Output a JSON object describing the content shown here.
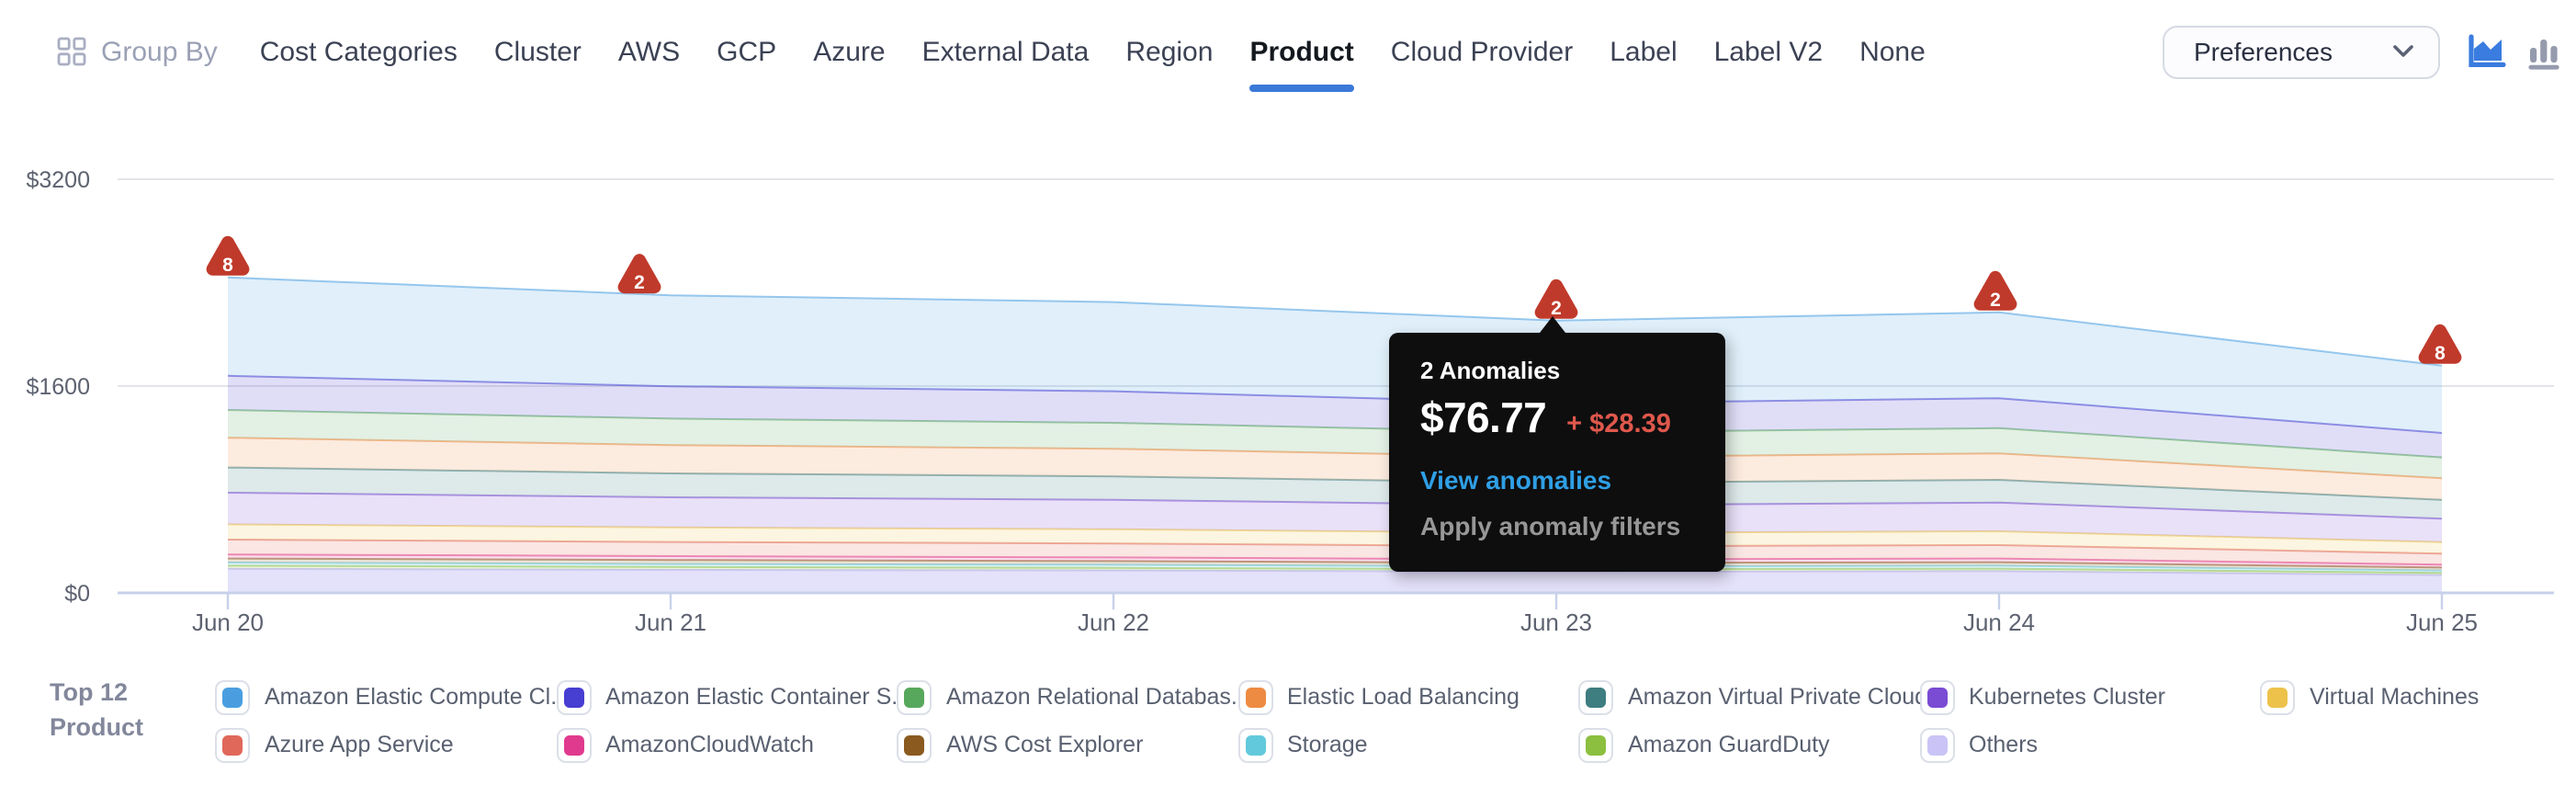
{
  "nav": {
    "group_by_label": "Group By",
    "items": [
      "Cost Categories",
      "Cluster",
      "AWS",
      "GCP",
      "Azure",
      "External Data",
      "Region",
      "Product",
      "Cloud Provider",
      "Label",
      "Label V2",
      "None"
    ],
    "selected": "Product",
    "underline_color": "#3B78D8",
    "preferences_label": "Preferences",
    "chart_toggles": [
      {
        "icon": "area-chart-icon",
        "active": true,
        "color": "#3A7CDF"
      },
      {
        "icon": "bar-chart-icon",
        "active": false,
        "color": "#959BAD"
      }
    ]
  },
  "chart_data": {
    "type": "area",
    "stacked": true,
    "stacking": "first-series-on-top",
    "x": [
      "Jun 20",
      "Jun 21",
      "Jun 22",
      "Jun 23",
      "Jun 24",
      "Jun 25"
    ],
    "ylim": [
      0,
      3200
    ],
    "y_ticks": [
      {
        "value": 0,
        "label": "$0"
      },
      {
        "value": 1600,
        "label": "$1600"
      },
      {
        "value": 3200,
        "label": "$3200"
      }
    ],
    "grid": true,
    "legend_position": "bottom",
    "series": [
      {
        "name": "Amazon Elastic Compute Cl...",
        "color": "#4A9EE0",
        "values": [
          760,
          705,
          690,
          640,
          665,
          520
        ]
      },
      {
        "name": "Amazon Elastic Container S...",
        "color": "#473ED2",
        "values": [
          265,
          250,
          245,
          225,
          232,
          190
        ]
      },
      {
        "name": "Amazon Relational Databas...",
        "color": "#57A85C",
        "values": [
          215,
          205,
          200,
          190,
          195,
          160
        ]
      },
      {
        "name": "Elastic Load Balancing",
        "color": "#EE8B42",
        "values": [
          230,
          218,
          213,
          200,
          205,
          168
        ]
      },
      {
        "name": "Amazon Virtual Private Cloud",
        "color": "#3E7D80",
        "values": [
          195,
          186,
          182,
          172,
          176,
          145
        ]
      },
      {
        "name": "Kubernetes Cluster",
        "color": "#7A4BD3",
        "values": [
          245,
          233,
          228,
          215,
          221,
          182
        ]
      },
      {
        "name": "Virtual Machines",
        "color": "#EDC24B",
        "values": [
          118,
          112,
          110,
          104,
          107,
          88
        ]
      },
      {
        "name": "Azure App Service",
        "color": "#E0685A",
        "values": [
          115,
          110,
          107,
          101,
          104,
          86
        ]
      },
      {
        "name": "AmazonCloudWatch",
        "color": "#E03A8E",
        "values": [
          31,
          30,
          29,
          27,
          28,
          23
        ]
      },
      {
        "name": "AWS Cost Explorer",
        "color": "#8A5A1E",
        "values": [
          31,
          30,
          29,
          27,
          28,
          23
        ]
      },
      {
        "name": "Storage",
        "color": "#62C9DC",
        "values": [
          25,
          24,
          23,
          22,
          22,
          18
        ]
      },
      {
        "name": "Amazon GuardDuty",
        "color": "#8CBF3F",
        "values": [
          23,
          22,
          21,
          20,
          20,
          17
        ]
      },
      {
        "name": "Others",
        "color": "#C9C4F5",
        "values": [
          187,
          178,
          173,
          163,
          168,
          138
        ]
      }
    ],
    "anomalies": [
      {
        "day": "Jun 20",
        "count": 8,
        "dx": 0
      },
      {
        "day": "Jun 21",
        "count": 2,
        "dx": -17
      },
      {
        "day": "Jun 23",
        "count": 2,
        "dx": 0
      },
      {
        "day": "Jun 24",
        "count": 2,
        "dx": -2
      },
      {
        "day": "Jun 25",
        "count": 8,
        "dx": -1
      }
    ],
    "anomaly_marker_color": "#C03A2B"
  },
  "tooltip": {
    "anchor_day": "Jun 23",
    "title": "2 Anomalies",
    "value": "$76.77",
    "delta": "+ $28.39",
    "delta_color": "#DF584C",
    "link": "View anomalies",
    "link_color": "#2F9FE5",
    "action": "Apply anomaly filters"
  },
  "legend": {
    "title_line1": "Top 12",
    "title_line2": "Product"
  }
}
